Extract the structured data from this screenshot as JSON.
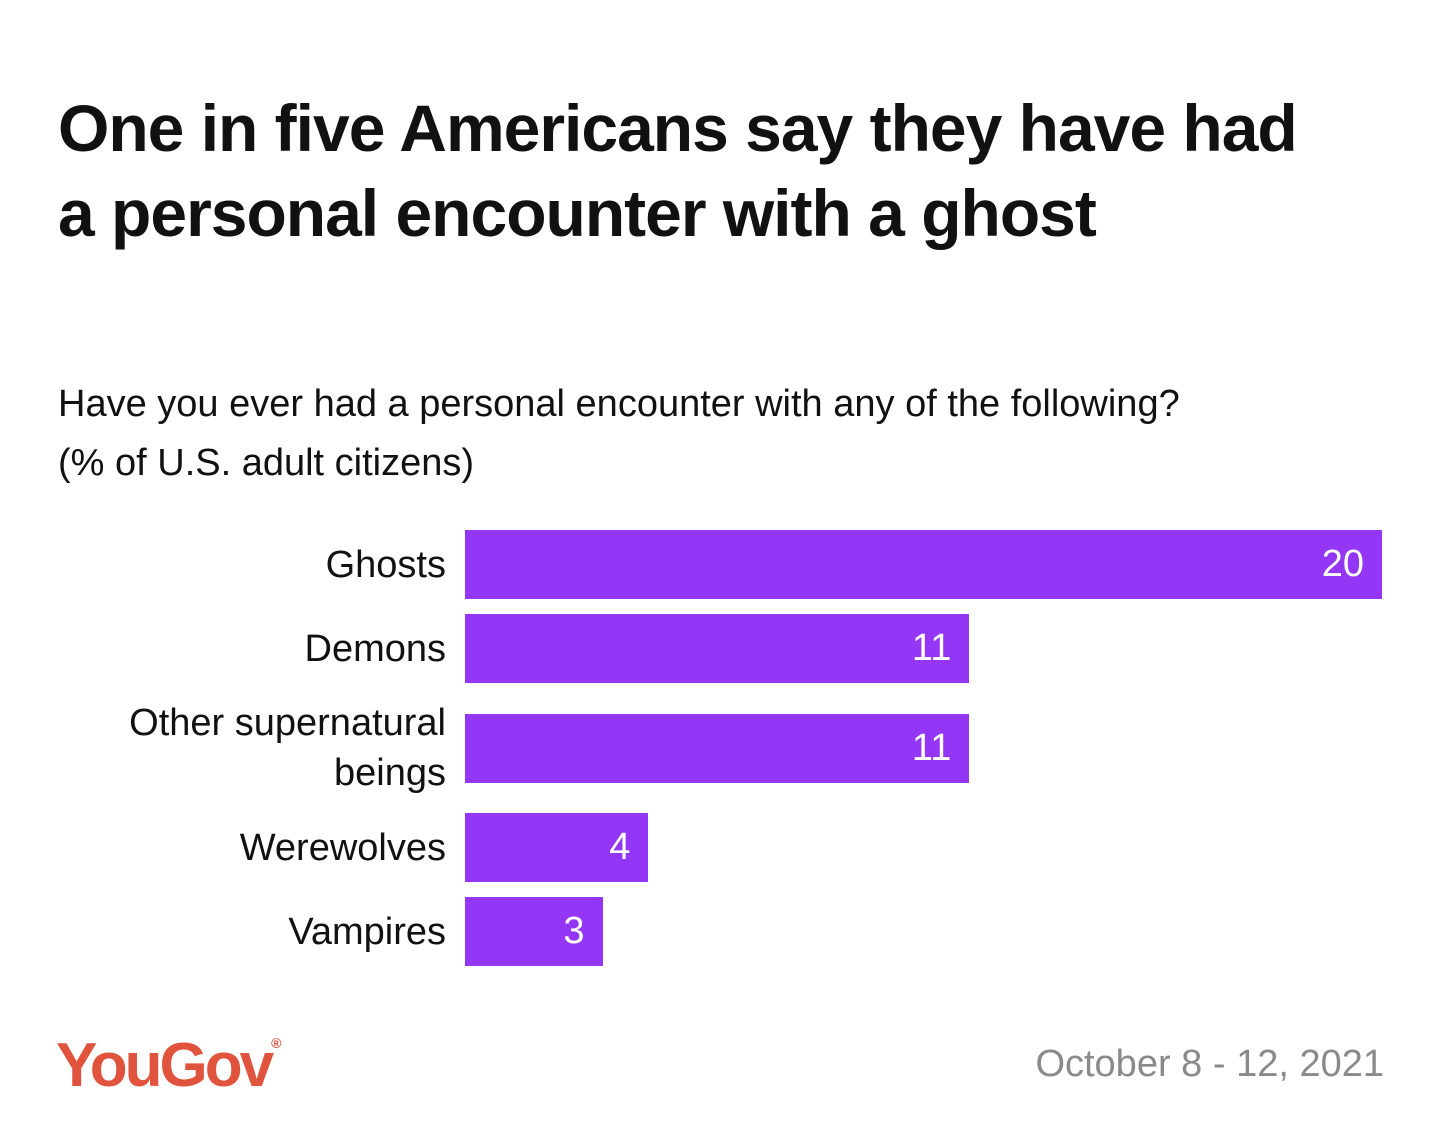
{
  "chart_data": {
    "type": "bar",
    "orientation": "horizontal",
    "title": "One in five Americans say they have had a personal encounter with a ghost",
    "subtitle": "Have you ever had a personal encounter with any of the following?",
    "note": "(% of U.S. adult citizens)",
    "categories": [
      "Ghosts",
      "Demons",
      "Other supernatural beings",
      "Werewolves",
      "Vampires"
    ],
    "values": [
      20,
      11,
      11,
      4,
      3
    ],
    "color": "#9336f5",
    "xlim": [
      0,
      20
    ],
    "logo": "YouGov",
    "logo_mark": "®",
    "date": "October 8 - 12, 2021"
  }
}
